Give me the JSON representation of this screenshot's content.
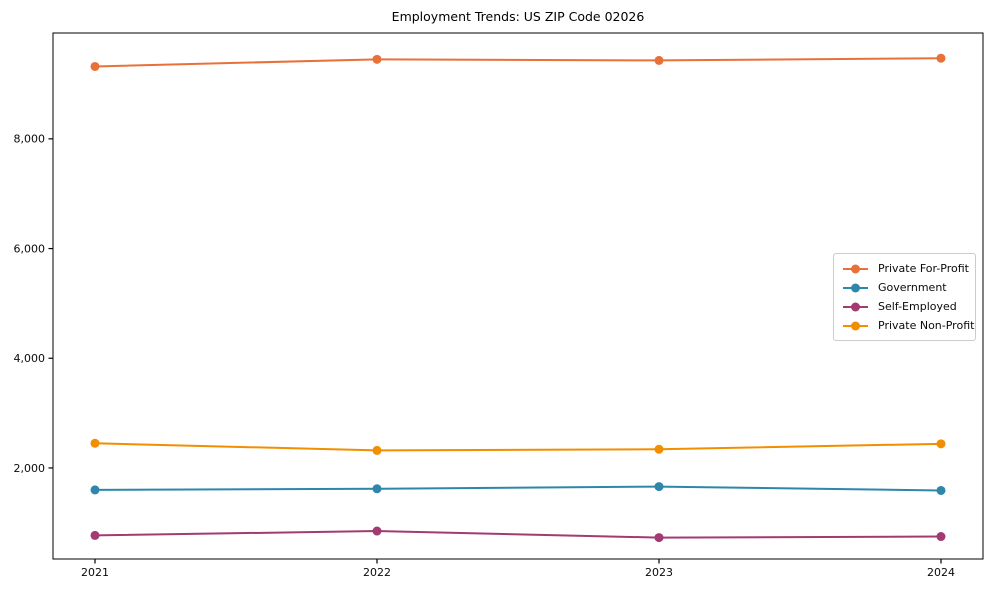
{
  "figure": {
    "background": "#ffffff",
    "spine_color": "#000000",
    "tick_color": "#0a0a0a"
  },
  "chart_data": {
    "type": "line",
    "title": "Employment Trends: US ZIP Code 02026",
    "xlabel": "",
    "ylabel": "",
    "x": [
      "2021",
      "2022",
      "2023",
      "2024"
    ],
    "ylim": [
      340,
      9930
    ],
    "yticks": {
      "values": [
        2000,
        4000,
        6000,
        8000
      ],
      "labels": [
        "2,000",
        "4,000",
        "6,000",
        "8,000"
      ]
    },
    "grid": false,
    "legend_position": "center-right",
    "series": [
      {
        "name": "Private For-Profit",
        "color": "#e8713a",
        "values": [
          9320,
          9450,
          9430,
          9470
        ]
      },
      {
        "name": "Government",
        "color": "#2e86ab",
        "values": [
          1600,
          1620,
          1660,
          1590
        ]
      },
      {
        "name": "Self-Employed",
        "color": "#a23b72",
        "values": [
          770,
          850,
          730,
          750
        ]
      },
      {
        "name": "Private Non-Profit",
        "color": "#f18f01",
        "values": [
          2450,
          2320,
          2340,
          2440
        ]
      }
    ]
  }
}
